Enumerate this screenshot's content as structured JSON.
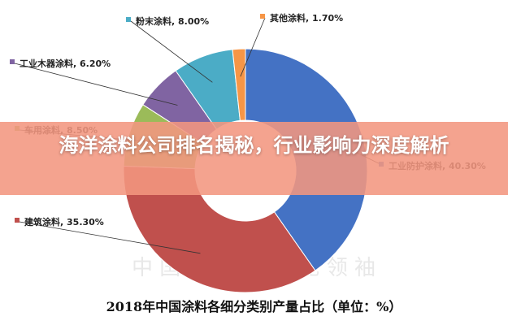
{
  "chart_data": {
    "type": "pie",
    "style": "donut",
    "title": "2018年中国涂料各细分类别产量占比（单位：%）",
    "categories": [
      "工业防护涂料",
      "建筑涂料",
      "车用涂料",
      "工业木器涂料",
      "粉末涂料",
      "其他涂料"
    ],
    "values": [
      40.3,
      35.3,
      8.5,
      6.2,
      8.0,
      1.7
    ],
    "labels": [
      "工业防护涂料, 40.30%",
      "建筑涂料, 35.30%",
      "车用涂料, 8.50%",
      "工业木器涂料, 6.20%",
      "粉末涂料, 8.00%",
      "其他涂料, 1.70%"
    ],
    "colors": [
      "#4472c4",
      "#c0504d",
      "#9bbb59",
      "#8064a2",
      "#4bacc6",
      "#f79646"
    ],
    "legend": "none"
  },
  "watermark": "中 国 涂 料 工 业 见 领 袖",
  "overlay": {
    "headline": "海洋涂料公司排名揭秘，行业影响力深度解析"
  }
}
